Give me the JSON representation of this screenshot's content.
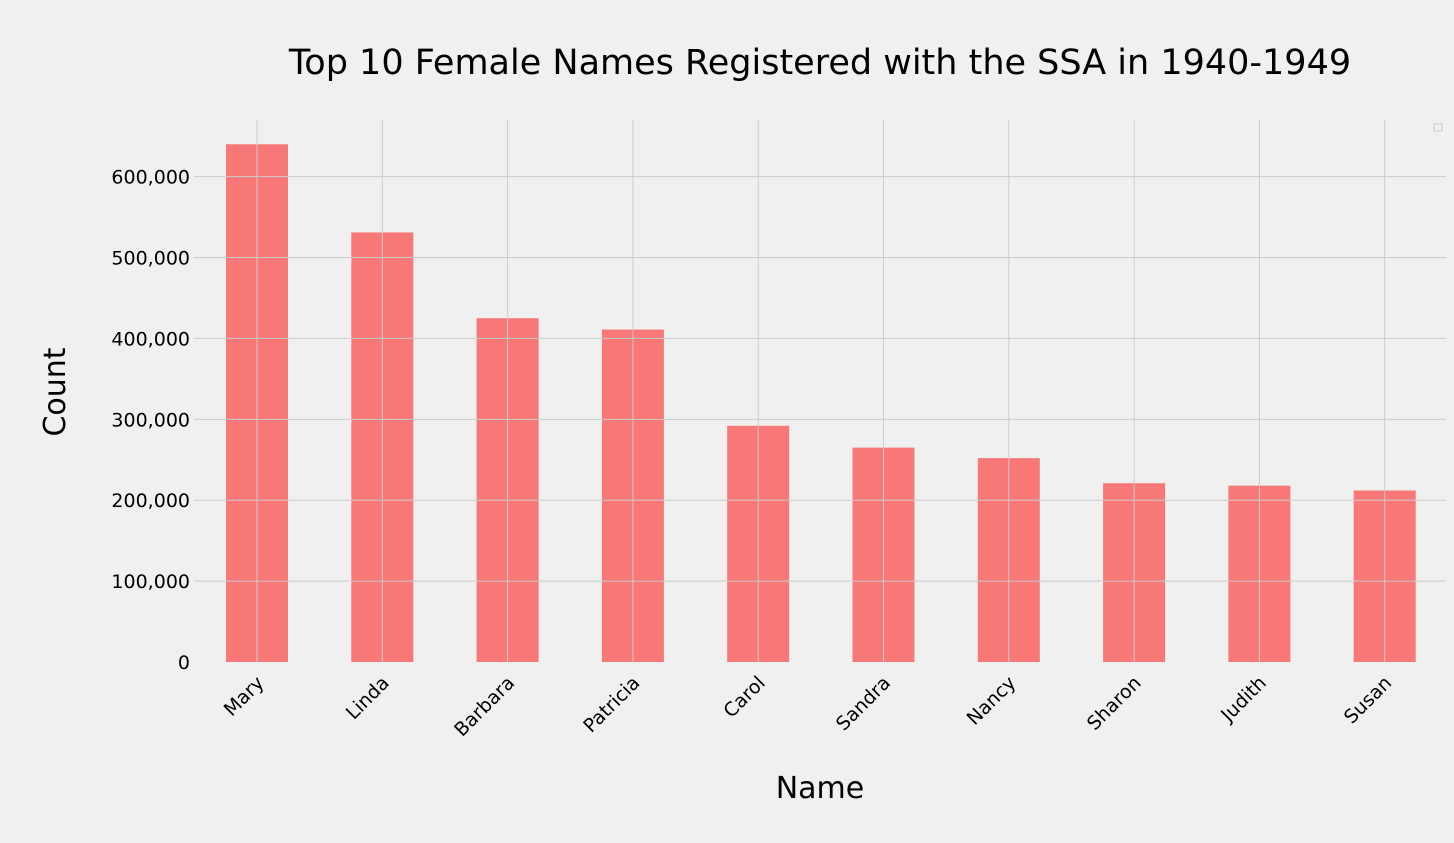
{
  "chart_data": {
    "type": "bar",
    "title": "Top 10 Female Names Registered with the SSA in 1940-1949",
    "xlabel": "Name",
    "ylabel": "Count",
    "categories": [
      "Mary",
      "Linda",
      "Barbara",
      "Patricia",
      "Carol",
      "Sandra",
      "Nancy",
      "Sharon",
      "Judith",
      "Susan"
    ],
    "values": [
      640000,
      531000,
      425000,
      411000,
      292000,
      265000,
      252000,
      221000,
      218000,
      212000
    ],
    "ylim": [
      0,
      670000
    ],
    "yticks": [
      0,
      100000,
      200000,
      300000,
      400000,
      500000,
      600000
    ],
    "ytick_labels": [
      "0",
      "100,000",
      "200,000",
      "300,000",
      "400,000",
      "500,000",
      "600,000"
    ],
    "grid": true,
    "legend": "top-right, empty",
    "colors": {
      "bar": "#ff0000",
      "background": "#f0f0f0",
      "grid": "#cbcbcb"
    }
  }
}
